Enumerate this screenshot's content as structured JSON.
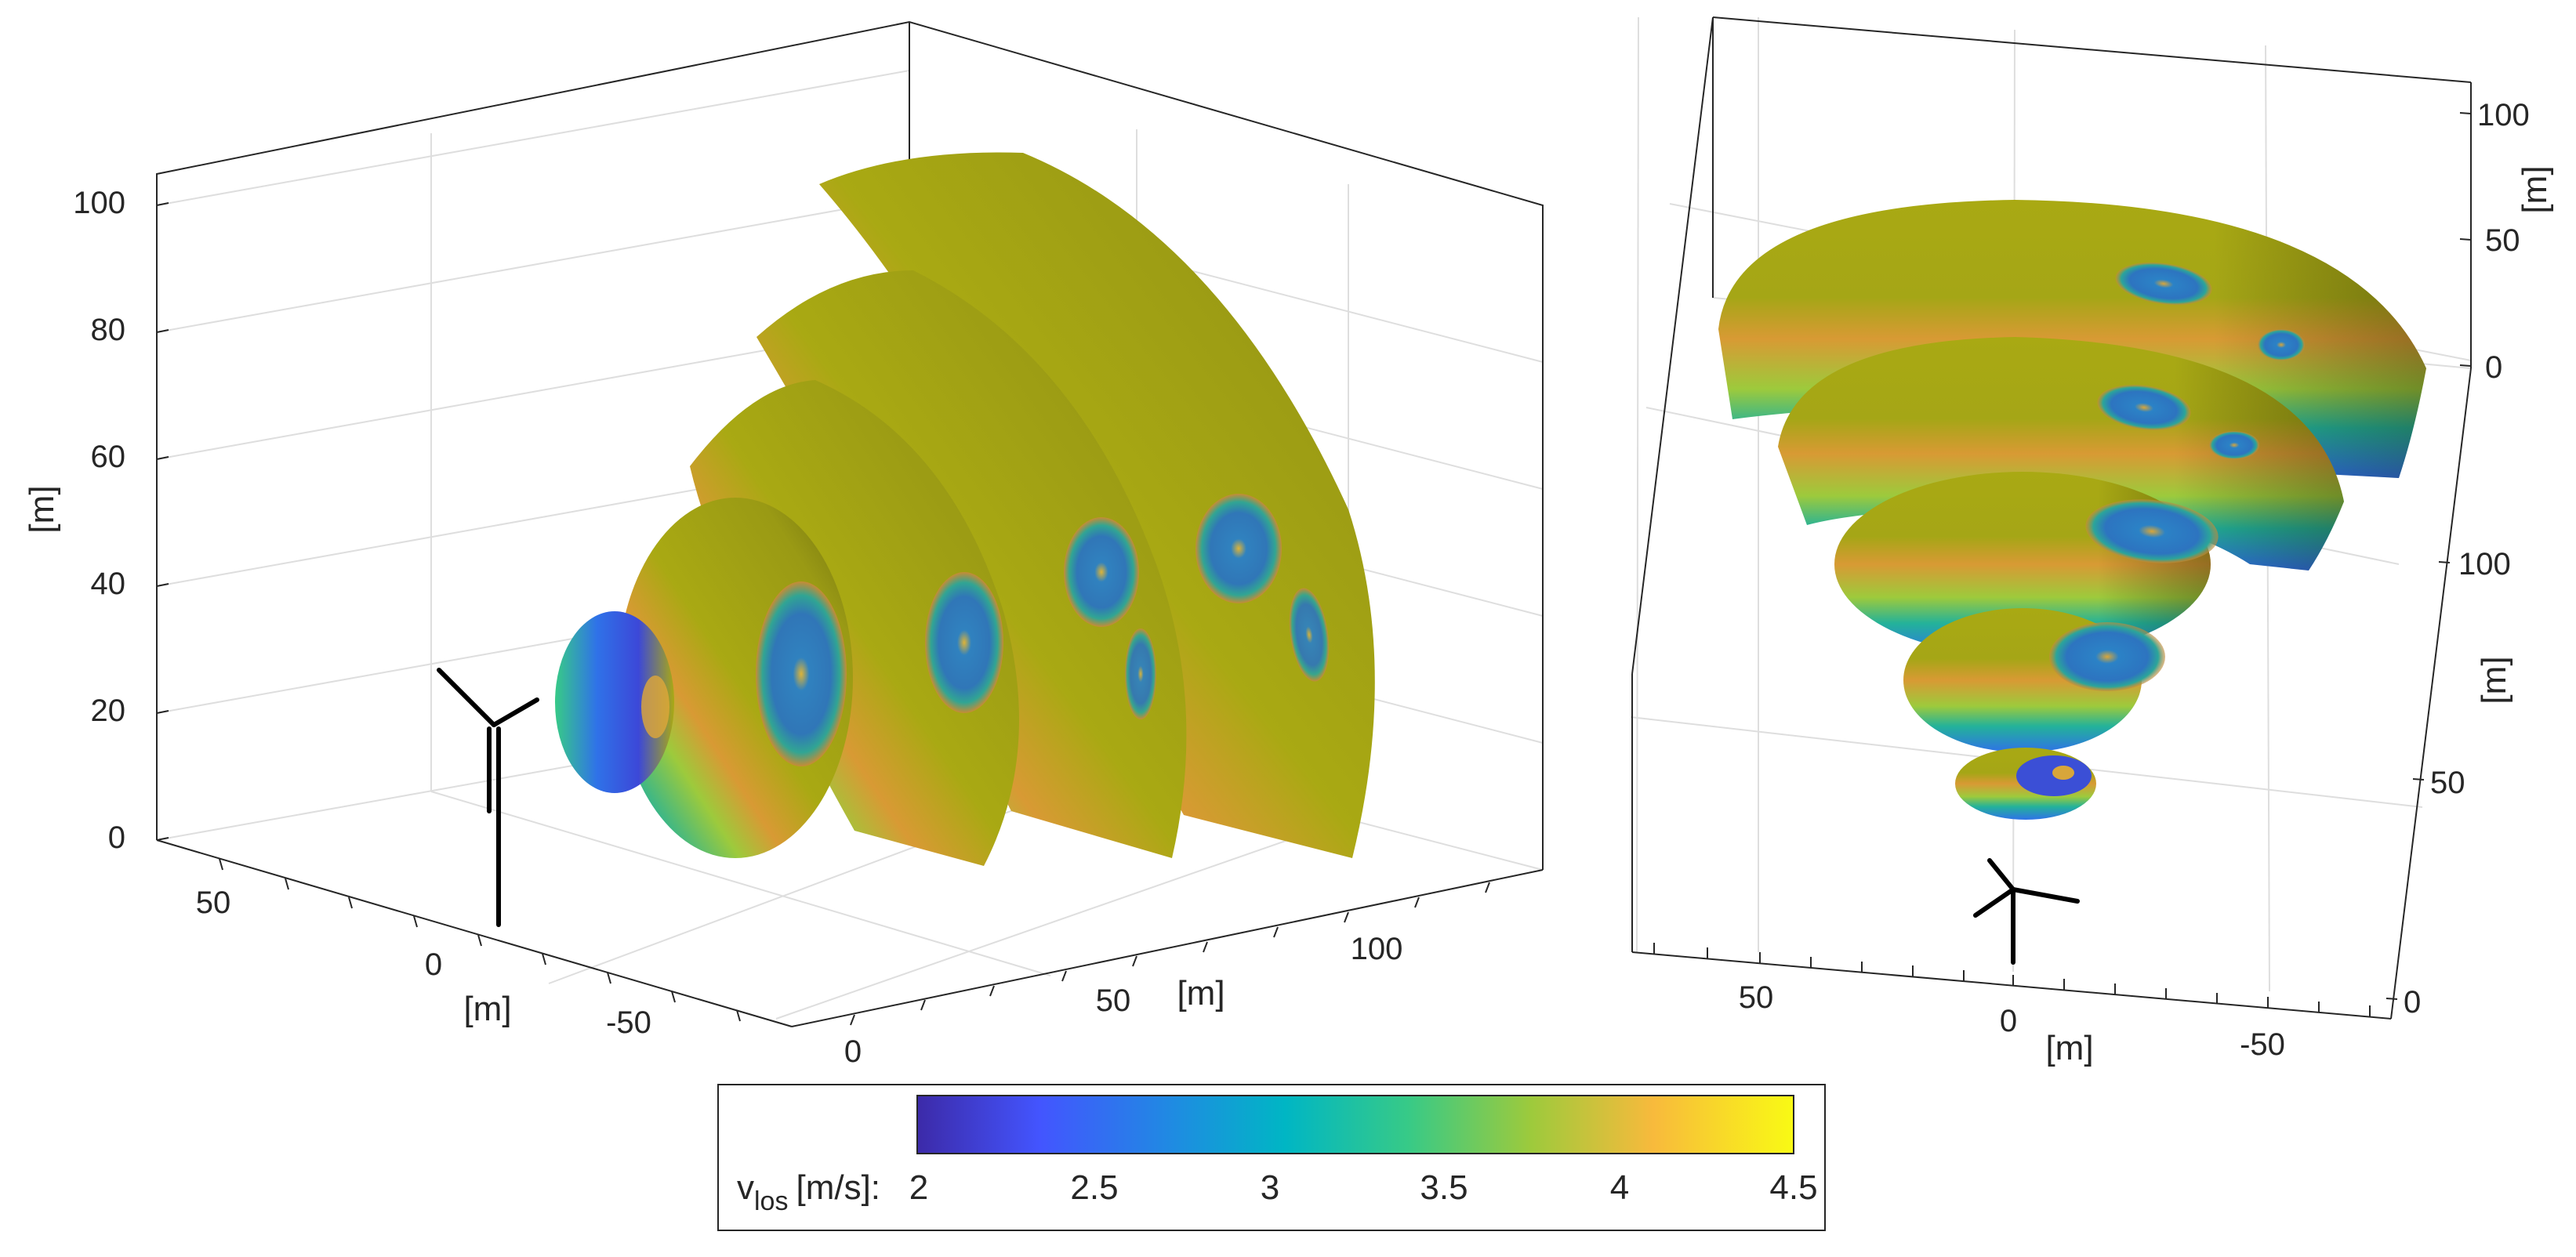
{
  "chart_data": [
    {
      "type": "surface-3d",
      "view": "perspective",
      "x_label": "[m]",
      "y_label": "[m]",
      "z_label": "[m]",
      "x_ticks": [
        "0",
        "50",
        "100"
      ],
      "y_ticks": [
        "50",
        "0",
        "-50"
      ],
      "z_ticks": [
        "0",
        "20",
        "40",
        "60",
        "80",
        "100"
      ],
      "zlim": [
        0,
        100
      ],
      "grid": true,
      "scan_surfaces": [
        {
          "range_step": 1,
          "vortex_count": 1
        },
        {
          "range_step": 2,
          "vortex_count": 1
        },
        {
          "range_step": 3,
          "vortex_count": 2
        },
        {
          "range_step": 4,
          "vortex_count": 2
        },
        {
          "range_step": 5,
          "vortex_count": 2
        }
      ]
    },
    {
      "type": "surface-3d",
      "view": "top-down",
      "x_label": "[m]",
      "right_upper_label": "[m]",
      "right_lower_label": "[m]",
      "x_ticks": [
        "50",
        "0",
        "-50"
      ],
      "right_upper_ticks": [
        "100",
        "50",
        "0"
      ],
      "right_lower_ticks": [
        "100",
        "50",
        "0"
      ],
      "grid": true,
      "scan_surfaces": [
        {
          "range_step": 1,
          "vortex_count": 1
        },
        {
          "range_step": 2,
          "vortex_count": 1
        },
        {
          "range_step": 3,
          "vortex_count": 1
        },
        {
          "range_step": 4,
          "vortex_count": 2
        },
        {
          "range_step": 5,
          "vortex_count": 2
        }
      ]
    }
  ],
  "colorbar": {
    "label_main": "v",
    "label_sub": "los",
    "label_unit": "[m/s]:",
    "range": [
      2,
      4.5
    ],
    "ticks": [
      "2",
      "2.5",
      "3",
      "3.5",
      "4",
      "4.5"
    ],
    "colormap": [
      "#3c2aa8",
      "#4355ff",
      "#1d8ee0",
      "#00b6c4",
      "#37ca87",
      "#9dca3c",
      "#f8ba3c",
      "#f9fa14"
    ]
  },
  "colors": {
    "surface_base": "#a9a913",
    "surface_shade": "#6c6c10",
    "band_orange": "#d89a34",
    "band_teal": "#23b29a",
    "band_blue": "#2f72e8",
    "vortex_core": "#2e86c9",
    "axis": "#262626",
    "grid": "#dedede"
  },
  "icons": {
    "turbine": "wind-turbine-icon"
  }
}
